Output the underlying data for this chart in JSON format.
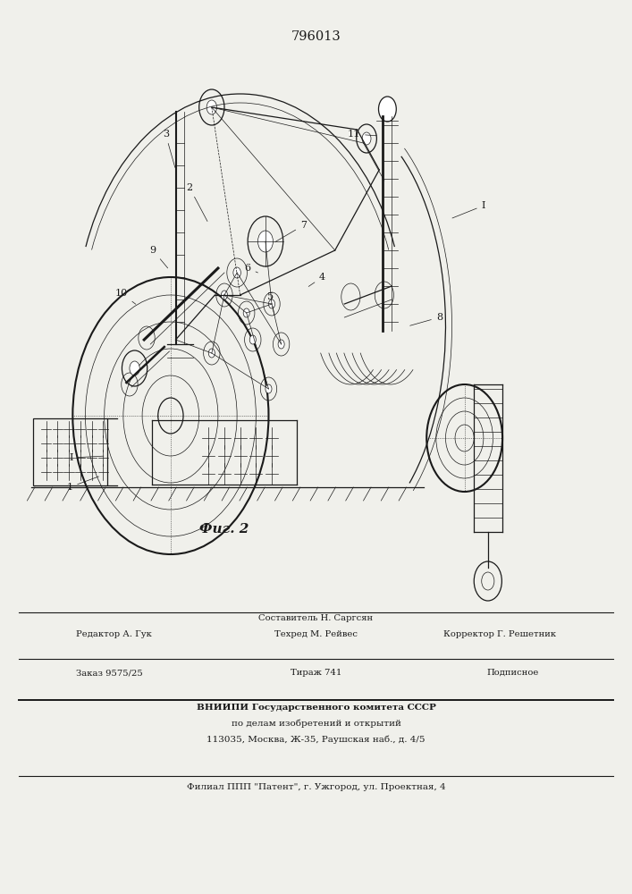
{
  "patent_number": "796013",
  "figure_caption": "Фиг. 2",
  "bg_color": "#f0f0eb",
  "line_color": "#1a1a1a",
  "footer": {
    "row1_left": "Редактор А. Гук",
    "row1_center_top": "Составитель Н. Саргсян",
    "row1_center_bot": "Техред М. Рейвес",
    "row1_right": "Корректор Г. Решетник",
    "row2_left": "Заказ 9575/25",
    "row2_center": "Тираж 741",
    "row2_right": "Подписное",
    "row3": "ВНИИПИ Государственного комитета СССР",
    "row4": "по делам изобретений и открытий",
    "row5": "113035, Москва, Ж-35, Раушская наб., д. 4/5",
    "row6": "Филиал ППП \"Патент\", г. Ужгород, ул. Проектная, 4"
  }
}
